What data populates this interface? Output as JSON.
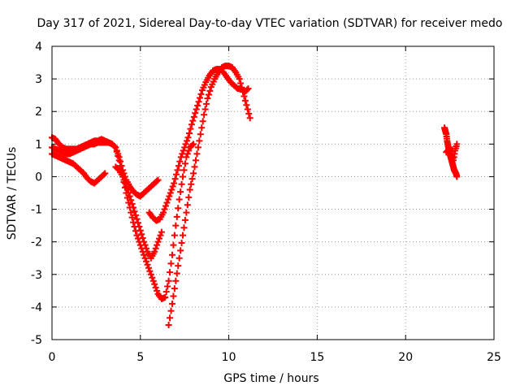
{
  "chart_data": {
    "type": "scatter",
    "title": "Day 317 of 2021, Sidereal Day-to-day VTEC variation (SDTVAR) for receiver medo",
    "xlabel": "GPS time / hours",
    "ylabel": "SDTVAR / TECUs",
    "xlim": [
      0,
      25
    ],
    "ylim": [
      -5,
      4
    ],
    "xticks": [
      "0",
      "5",
      "10",
      "15",
      "20",
      "25"
    ],
    "yticks": [
      "-5",
      "-4",
      "-3",
      "-2",
      "-1",
      "0",
      "1",
      "2",
      "3",
      "4"
    ],
    "grid": true,
    "marker": "+",
    "color": "#ff0000",
    "series": [
      {
        "x": [
          0.0,
          0.2,
          0.4,
          0.6,
          0.8,
          1.0,
          1.2,
          1.4,
          1.6,
          1.8,
          2.0,
          2.2,
          2.4,
          2.6,
          2.8,
          3.0,
          3.2,
          3.4,
          3.6,
          3.8,
          4.0,
          4.2,
          4.4,
          4.6,
          4.8,
          5.0,
          5.2,
          5.4,
          5.6,
          5.8,
          6.0
        ],
        "y": [
          1.2,
          1.15,
          1.0,
          0.9,
          0.85,
          0.85,
          0.85,
          0.85,
          0.9,
          0.95,
          1.0,
          1.05,
          1.1,
          1.1,
          1.15,
          1.1,
          1.05,
          1.0,
          0.9,
          0.6,
          0.2,
          -0.1,
          -0.3,
          -0.45,
          -0.55,
          -0.6,
          -0.5,
          -0.4,
          -0.3,
          -0.2,
          -0.1
        ]
      },
      {
        "x": [
          0.0,
          0.2,
          0.4,
          0.6,
          0.8,
          1.0,
          1.2,
          1.4,
          1.6,
          1.8,
          2.0,
          2.2,
          2.4,
          2.6,
          2.8,
          3.0,
          3.2,
          3.4,
          3.6,
          3.8,
          4.0,
          4.2,
          4.4,
          4.6,
          4.8,
          5.0,
          5.2,
          5.4,
          5.6,
          5.8,
          6.0,
          6.2,
          6.4,
          6.6,
          6.8,
          7.0,
          7.2,
          7.4,
          7.6,
          7.8,
          8.0
        ],
        "y": [
          0.9,
          0.85,
          0.8,
          0.75,
          0.7,
          0.7,
          0.75,
          0.8,
          0.85,
          0.9,
          0.95,
          1.0,
          1.0,
          1.05,
          1.05,
          1.05,
          1.05,
          1.0,
          0.9,
          0.5,
          0.0,
          -0.5,
          -0.95,
          -1.4,
          -1.8,
          -2.1,
          -2.4,
          -2.7,
          -3.0,
          -3.3,
          -3.6,
          -3.75,
          -3.7,
          -3.2,
          -2.4,
          -1.5,
          -0.7,
          0.0,
          0.6,
          0.9,
          1.0
        ]
      },
      {
        "x": [
          0.0,
          0.2,
          0.4,
          0.6,
          0.8,
          1.0,
          1.2,
          1.4,
          1.6,
          1.8,
          2.0,
          2.2,
          2.4,
          2.6,
          2.8,
          3.0
        ],
        "y": [
          0.7,
          0.65,
          0.6,
          0.55,
          0.5,
          0.45,
          0.4,
          0.3,
          0.2,
          0.1,
          -0.05,
          -0.15,
          -0.2,
          -0.1,
          0.0,
          0.1
        ]
      },
      {
        "x": [
          3.6,
          3.8,
          4.0,
          4.2,
          4.4,
          4.6,
          4.8,
          5.0,
          5.2,
          5.4,
          5.6,
          5.8,
          6.0,
          6.2
        ],
        "y": [
          0.3,
          0.2,
          0.0,
          -0.3,
          -0.6,
          -0.95,
          -1.3,
          -1.65,
          -2.0,
          -2.3,
          -2.5,
          -2.3,
          -2.0,
          -1.7
        ]
      },
      {
        "x": [
          5.5,
          5.7,
          5.9,
          6.1,
          6.3,
          6.5,
          6.7,
          6.9,
          7.1,
          7.3,
          7.5,
          7.7,
          7.9,
          8.1,
          8.3,
          8.5,
          8.7,
          8.9,
          9.1,
          9.3,
          9.5,
          9.7,
          9.9,
          10.1,
          10.3,
          10.5,
          10.7,
          10.9,
          11.1
        ],
        "y": [
          -1.1,
          -1.25,
          -1.35,
          -1.3,
          -1.1,
          -0.8,
          -0.5,
          -0.2,
          0.2,
          0.6,
          0.9,
          1.2,
          1.6,
          1.95,
          2.3,
          2.65,
          2.9,
          3.1,
          3.25,
          3.3,
          3.3,
          3.2,
          3.05,
          2.9,
          2.8,
          2.7,
          2.7,
          2.6,
          2.7
        ]
      },
      {
        "x": [
          6.6,
          6.8,
          7.0,
          7.2,
          7.4,
          7.6,
          7.8,
          8.0,
          8.2,
          8.4,
          8.6,
          8.8,
          9.0,
          9.2,
          9.4,
          9.6,
          9.8,
          10.0,
          10.2,
          10.4,
          10.6,
          10.8,
          11.0,
          11.2
        ],
        "y": [
          -4.55,
          -3.9,
          -3.2,
          -2.5,
          -1.8,
          -1.1,
          -0.4,
          0.1,
          0.7,
          1.3,
          1.9,
          2.4,
          2.75,
          3.0,
          3.2,
          3.35,
          3.4,
          3.4,
          3.35,
          3.2,
          3.0,
          2.6,
          2.2,
          1.8
        ]
      },
      {
        "x": [
          22.2,
          22.25,
          22.3,
          22.35,
          22.4,
          22.45,
          22.5,
          22.55,
          22.6,
          22.65,
          22.7,
          22.75,
          22.8,
          22.85,
          22.9,
          22.3,
          22.4,
          22.5,
          22.6,
          22.7,
          22.8,
          22.9
        ],
        "y": [
          1.5,
          1.4,
          1.3,
          1.1,
          0.95,
          0.8,
          0.7,
          0.6,
          0.5,
          0.4,
          0.3,
          0.2,
          0.15,
          0.1,
          0.0,
          0.75,
          0.8,
          0.9,
          0.7,
          0.5,
          0.8,
          1.0
        ]
      }
    ]
  }
}
